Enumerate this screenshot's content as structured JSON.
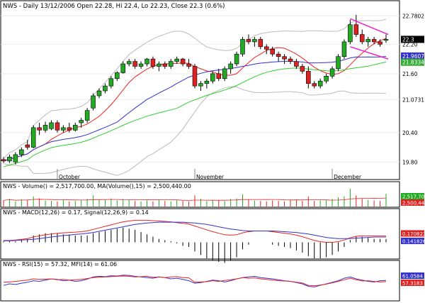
{
  "header": {
    "title": "NWS - Daily 13/12/2006 Open 22.28, Hi 22.4, Lo 22.23, Close 22.3 (0.6%)"
  },
  "colors": {
    "up": "#22aa22",
    "down": "#dd2222",
    "upper_band": "#bbbbbb",
    "ma_red": "#ee2222",
    "ma_blue": "#3333cc",
    "ma_green": "#33cc33",
    "channel": "#ee22cc",
    "panel_border": "#000000",
    "grid": "#cccccc"
  },
  "chart_data": [
    {
      "type": "candlestick",
      "panel": "price",
      "title": "NWS - Daily 13/12/2006 Open 22.28, Hi 22.4, Lo 22.23, Close 22.3 (0.6%)",
      "y_ticks": [
        "22.7802",
        "22.20",
        "21.60",
        "21.0731",
        "20.40",
        "19.80"
      ],
      "y_tick_values": [
        22.7802,
        22.2,
        21.6,
        21.0731,
        20.4,
        19.8
      ],
      "ylim": [
        19.5,
        22.9
      ],
      "x_labels": [
        {
          "index": 9,
          "label": "October"
        },
        {
          "index": 32,
          "label": "November"
        },
        {
          "index": 55,
          "label": "December"
        }
      ],
      "price_tags": [
        {
          "value": 22.3,
          "label": "22.3",
          "color": "#000000"
        },
        {
          "value": 21.9607,
          "label": "21.9607",
          "color": "#3333cc"
        },
        {
          "value": 21.8334,
          "label": "21.8334",
          "color": "#33aa33"
        }
      ],
      "candles": [
        [
          19.85,
          19.9,
          19.78,
          19.82
        ],
        [
          19.82,
          19.95,
          19.78,
          19.9
        ],
        [
          19.8,
          20.0,
          19.75,
          19.95
        ],
        [
          19.95,
          20.1,
          19.9,
          20.05
        ],
        [
          20.15,
          20.25,
          20.05,
          20.1
        ],
        [
          20.1,
          20.55,
          20.08,
          20.5
        ],
        [
          20.5,
          20.6,
          20.35,
          20.45
        ],
        [
          20.45,
          20.62,
          20.4,
          20.55
        ],
        [
          20.48,
          20.65,
          20.45,
          20.6
        ],
        [
          20.6,
          20.65,
          20.4,
          20.45
        ],
        [
          20.45,
          20.55,
          20.4,
          20.5
        ],
        [
          20.5,
          20.6,
          20.4,
          20.45
        ],
        [
          20.45,
          20.6,
          20.42,
          20.55
        ],
        [
          20.6,
          20.7,
          20.5,
          20.65
        ],
        [
          20.65,
          20.9,
          20.6,
          20.85
        ],
        [
          20.9,
          21.2,
          20.85,
          21.15
        ],
        [
          21.15,
          21.3,
          21.1,
          21.25
        ],
        [
          21.25,
          21.4,
          21.2,
          21.35
        ],
        [
          21.35,
          21.55,
          21.3,
          21.5
        ],
        [
          21.5,
          21.65,
          21.45,
          21.62
        ],
        [
          21.62,
          21.85,
          21.6,
          21.8
        ],
        [
          21.8,
          21.9,
          21.75,
          21.85
        ],
        [
          21.85,
          21.9,
          21.7,
          21.75
        ],
        [
          21.75,
          21.85,
          21.7,
          21.8
        ],
        [
          21.8,
          21.92,
          21.75,
          21.9
        ],
        [
          21.9,
          21.95,
          21.7,
          21.75
        ],
        [
          21.75,
          21.85,
          21.65,
          21.8
        ],
        [
          21.8,
          21.85,
          21.7,
          21.75
        ],
        [
          21.75,
          21.9,
          21.7,
          21.85
        ],
        [
          21.85,
          21.95,
          21.8,
          21.9
        ],
        [
          21.9,
          21.92,
          21.75,
          21.8
        ],
        [
          21.8,
          21.9,
          21.7,
          21.75
        ],
        [
          21.75,
          21.8,
          21.3,
          21.35
        ],
        [
          21.35,
          21.45,
          21.25,
          21.4
        ],
        [
          21.4,
          21.5,
          21.3,
          21.45
        ],
        [
          21.45,
          21.65,
          21.4,
          21.6
        ],
        [
          21.6,
          21.7,
          21.45,
          21.5
        ],
        [
          21.5,
          21.75,
          21.45,
          21.7
        ],
        [
          21.7,
          21.85,
          21.6,
          21.8
        ],
        [
          21.8,
          22.05,
          21.75,
          22.0
        ],
        [
          22.0,
          22.35,
          21.95,
          22.3
        ],
        [
          22.3,
          22.4,
          22.2,
          22.25
        ],
        [
          22.25,
          22.35,
          22.15,
          22.3
        ],
        [
          22.3,
          22.35,
          22.1,
          22.15
        ],
        [
          22.15,
          22.2,
          22.0,
          22.1
        ],
        [
          22.1,
          22.15,
          21.95,
          22.0
        ],
        [
          22.0,
          22.05,
          21.85,
          21.95
        ],
        [
          21.95,
          22.0,
          21.8,
          21.9
        ],
        [
          21.9,
          21.95,
          21.8,
          21.85
        ],
        [
          21.85,
          21.9,
          21.7,
          21.75
        ],
        [
          21.75,
          21.8,
          21.6,
          21.65
        ],
        [
          21.65,
          21.75,
          21.3,
          21.4
        ],
        [
          21.4,
          21.45,
          21.3,
          21.35
        ],
        [
          21.35,
          21.5,
          21.3,
          21.45
        ],
        [
          21.45,
          21.6,
          21.4,
          21.55
        ],
        [
          21.55,
          21.75,
          21.5,
          21.7
        ],
        [
          21.7,
          22.0,
          21.65,
          21.95
        ],
        [
          21.95,
          22.3,
          21.9,
          22.25
        ],
        [
          22.25,
          22.7,
          22.2,
          22.6
        ],
        [
          22.6,
          22.8,
          22.35,
          22.4
        ],
        [
          22.4,
          22.5,
          22.2,
          22.25
        ],
        [
          22.25,
          22.35,
          22.15,
          22.3
        ],
        [
          22.3,
          22.35,
          22.2,
          22.25
        ],
        [
          22.25,
          22.3,
          22.15,
          22.2
        ],
        [
          22.28,
          22.4,
          22.23,
          22.3
        ]
      ]
    },
    {
      "type": "bar",
      "panel": "volume",
      "title": "NWS - Volume() = 2,517,700.00, MA(Volume(),15) = 2,500,440.00",
      "tags": [
        {
          "label": "2,517,700",
          "color": "#22aa22"
        },
        {
          "label": "2,500,440",
          "color": "#dd2222"
        }
      ],
      "values": [
        1.2,
        1.5,
        1.0,
        1.4,
        1.3,
        2.0,
        1.6,
        1.2,
        1.1,
        1.0,
        1.3,
        1.0,
        1.1,
        1.2,
        1.5,
        2.2,
        1.4,
        1.3,
        1.6,
        1.2,
        1.5,
        1.3,
        1.1,
        1.0,
        1.2,
        1.0,
        1.4,
        1.1,
        1.0,
        1.2,
        1.1,
        1.0,
        2.2,
        1.5,
        1.1,
        1.3,
        1.2,
        1.1,
        1.5,
        1.6,
        2.4,
        1.3,
        1.2,
        1.1,
        1.0,
        1.2,
        1.1,
        1.0,
        1.3,
        1.2,
        1.1,
        2.0,
        1.1,
        1.2,
        1.3,
        1.5,
        1.8,
        2.0,
        3.5,
        2.2,
        1.5,
        1.3,
        1.2,
        1.1,
        2.5
      ]
    },
    {
      "type": "line",
      "panel": "macd",
      "title": "NWS - MACD(12,26) = 0.17, Signal(12,26,9) = 0.14",
      "tags": [
        {
          "label": "0.170823",
          "color": "#dd2222"
        },
        {
          "label": "0.141826",
          "color": "#3333cc"
        }
      ],
      "ylim": [
        -0.4,
        0.7
      ],
      "macd": [
        0.05,
        0.05,
        0.06,
        0.08,
        0.1,
        0.14,
        0.17,
        0.2,
        0.22,
        0.24,
        0.25,
        0.26,
        0.27,
        0.28,
        0.3,
        0.34,
        0.38,
        0.42,
        0.46,
        0.5,
        0.54,
        0.56,
        0.58,
        0.58,
        0.58,
        0.57,
        0.56,
        0.55,
        0.54,
        0.52,
        0.5,
        0.48,
        0.43,
        0.38,
        0.33,
        0.28,
        0.24,
        0.2,
        0.19,
        0.2,
        0.25,
        0.28,
        0.3,
        0.3,
        0.3,
        0.28,
        0.26,
        0.24,
        0.22,
        0.19,
        0.15,
        0.1,
        0.05,
        0.02,
        0.0,
        0.0,
        0.02,
        0.06,
        0.12,
        0.16,
        0.17,
        0.17,
        0.17,
        0.17,
        0.17
      ],
      "signal": [
        0.04,
        0.04,
        0.05,
        0.06,
        0.07,
        0.08,
        0.1,
        0.12,
        0.14,
        0.16,
        0.18,
        0.19,
        0.21,
        0.22,
        0.24,
        0.26,
        0.29,
        0.32,
        0.35,
        0.38,
        0.41,
        0.44,
        0.47,
        0.49,
        0.51,
        0.52,
        0.53,
        0.53,
        0.53,
        0.53,
        0.53,
        0.52,
        0.51,
        0.49,
        0.47,
        0.44,
        0.41,
        0.38,
        0.35,
        0.33,
        0.31,
        0.3,
        0.3,
        0.3,
        0.3,
        0.3,
        0.29,
        0.28,
        0.27,
        0.26,
        0.24,
        0.22,
        0.19,
        0.16,
        0.13,
        0.11,
        0.1,
        0.1,
        0.1,
        0.11,
        0.12,
        0.13,
        0.14,
        0.14,
        0.14
      ]
    },
    {
      "type": "line",
      "panel": "rsi",
      "title": "NWS - RSI(15) = 57.32, MFI(14) = 61.06",
      "tags": [
        {
          "label": "61.0584",
          "color": "#3333cc"
        },
        {
          "label": "57.3183",
          "color": "#dd2222"
        }
      ],
      "ylim": [
        0,
        100
      ],
      "rsi": [
        55,
        56,
        58,
        60,
        62,
        66,
        64,
        65,
        66,
        63,
        64,
        62,
        63,
        64,
        67,
        70,
        71,
        72,
        73,
        74,
        75,
        74,
        72,
        73,
        74,
        71,
        72,
        70,
        72,
        73,
        70,
        69,
        55,
        56,
        57,
        60,
        58,
        61,
        63,
        66,
        70,
        68,
        69,
        66,
        64,
        62,
        60,
        59,
        58,
        55,
        53,
        45,
        44,
        46,
        49,
        53,
        58,
        63,
        68,
        63,
        59,
        60,
        58,
        56,
        57
      ],
      "mfi": [
        45,
        50,
        48,
        52,
        55,
        60,
        58,
        62,
        66,
        64,
        60,
        62,
        58,
        60,
        65,
        72,
        74,
        73,
        76,
        75,
        78,
        77,
        74,
        72,
        70,
        68,
        72,
        70,
        66,
        68,
        64,
        60,
        52,
        54,
        58,
        62,
        60,
        56,
        60,
        66,
        70,
        72,
        74,
        70,
        68,
        66,
        63,
        60,
        58,
        54,
        50,
        42,
        40,
        45,
        50,
        55,
        60,
        68,
        72,
        66,
        62,
        58,
        56,
        60,
        61
      ]
    }
  ]
}
